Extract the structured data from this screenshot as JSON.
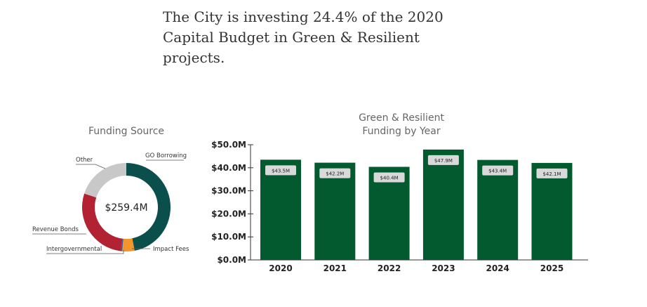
{
  "headline": "The City is investing 24.4% of the 2020 Capital Budget in Green & Resilient projects.",
  "chart_data": [
    {
      "type": "pie",
      "title": "Funding Source",
      "center_label": "$259.4M",
      "slices": [
        {
          "name": "GO Borrowing",
          "value": 47,
          "color": "#0a4f4c"
        },
        {
          "name": "Impact Fees",
          "value": 4.5,
          "color": "#f0962d"
        },
        {
          "name": "Intergovernmental",
          "value": 0.5,
          "color": "#2d5f9e"
        },
        {
          "name": "Revenue Bonds",
          "value": 28,
          "color": "#b22232"
        },
        {
          "name": "Other",
          "value": 20,
          "color": "#c8c8c8"
        }
      ]
    },
    {
      "type": "bar",
      "title_lines": [
        "Green & Resilient",
        "Funding by Year"
      ],
      "categories": [
        "2020",
        "2021",
        "2022",
        "2023",
        "2024",
        "2025"
      ],
      "values": [
        43.5,
        42.2,
        40.4,
        47.9,
        43.4,
        42.1
      ],
      "value_labels": [
        "$43.5M",
        "$42.2M",
        "$40.4M",
        "$47.9M",
        "$43.4M",
        "$42.1M"
      ],
      "ylim": [
        0,
        50
      ],
      "yticks": [
        0,
        10,
        20,
        30,
        40,
        50
      ],
      "ytick_labels": [
        "$0.0M",
        "$10.0M",
        "$20.0M",
        "$30.0M",
        "$40.0M",
        "$50.0M"
      ],
      "bar_color": "#035a2f",
      "label_bg": "#d9d9d9"
    }
  ]
}
